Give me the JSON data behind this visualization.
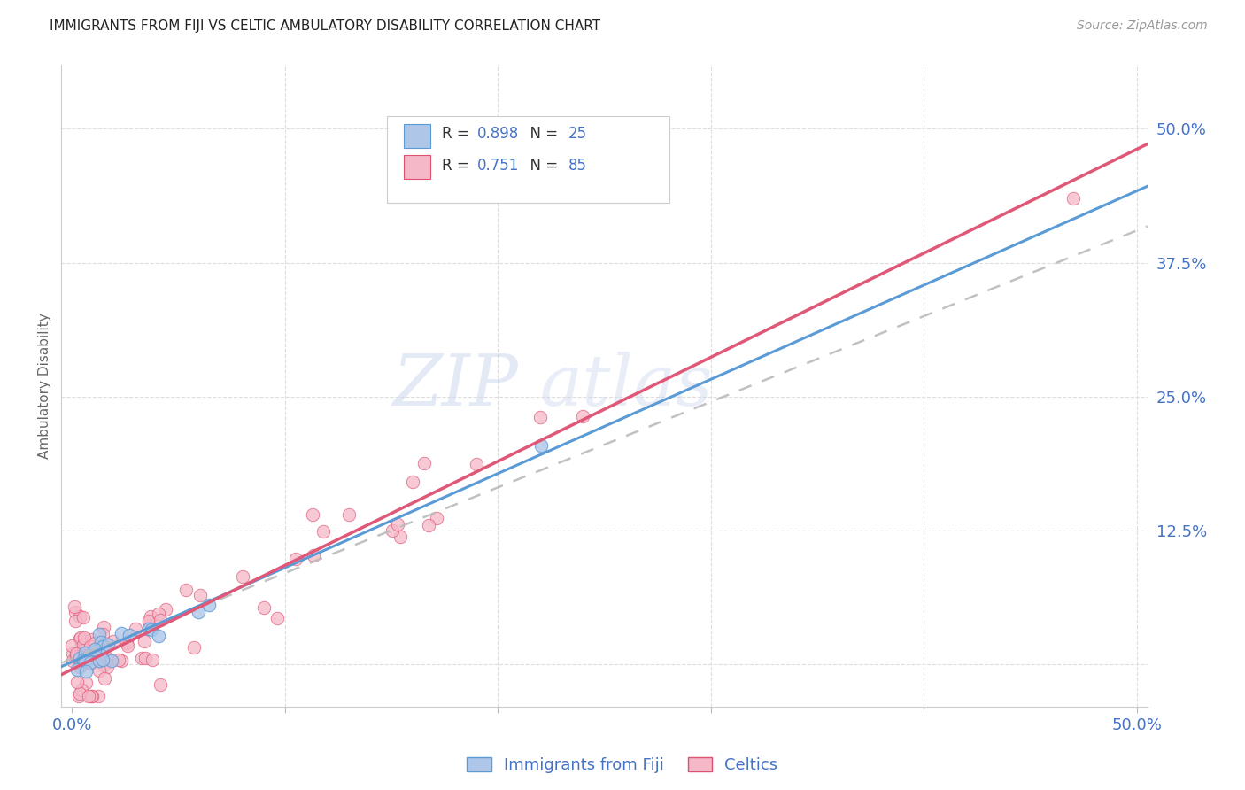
{
  "title": "IMMIGRANTS FROM FIJI VS CELTIC AMBULATORY DISABILITY CORRELATION CHART",
  "source": "Source: ZipAtlas.com",
  "ylabel": "Ambulatory Disability",
  "ytick_positions": [
    0.0,
    0.125,
    0.25,
    0.375,
    0.5
  ],
  "xtick_positions": [
    0.0,
    0.1,
    0.2,
    0.3,
    0.4,
    0.5
  ],
  "xlim": [
    -0.005,
    0.505
  ],
  "ylim": [
    -0.04,
    0.56
  ],
  "fiji_color": "#aec6e8",
  "fiji_edge_color": "#5b9bd5",
  "celtics_color": "#f4b8c8",
  "celtics_edge_color": "#e05070",
  "celtics_line_color": "#e05878",
  "fiji_line_color": "#5b9bd5",
  "gray_dash_color": "#bbbbbb",
  "watermark_color": "#ccd9ee",
  "background_color": "#ffffff",
  "grid_color": "#dddddd",
  "title_fontsize": 11,
  "tick_label_color": "#4472c4",
  "ylabel_color": "#666666",
  "legend_text_color": "#333333",
  "legend_value_color": "#4472c4",
  "source_color": "#999999",
  "celtics_slope": 0.972,
  "celtics_intercept": -0.005,
  "fiji_slope": 0.88,
  "fiji_intercept": 0.002,
  "gray_slope": 0.8,
  "gray_intercept": 0.005,
  "seed": 42
}
